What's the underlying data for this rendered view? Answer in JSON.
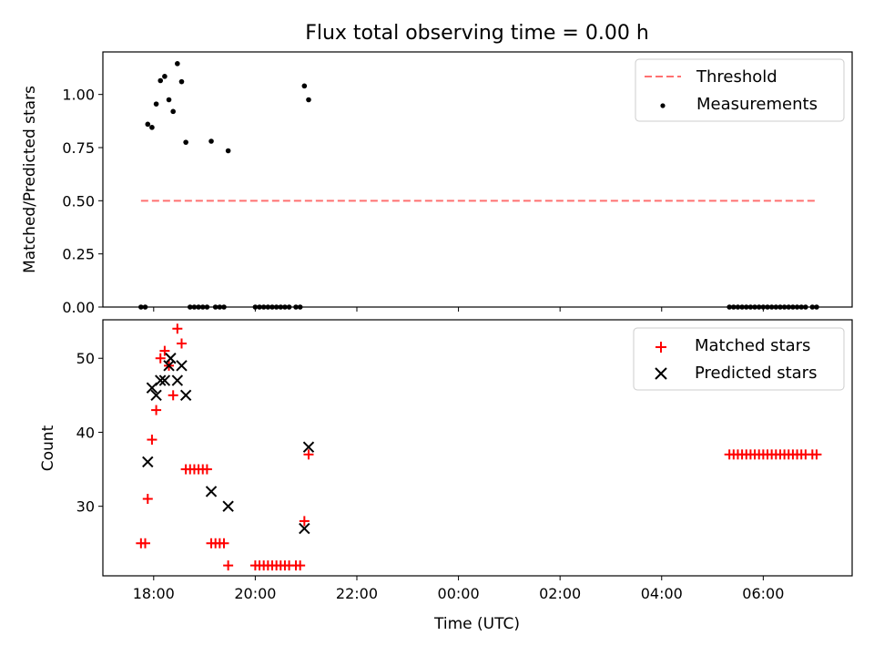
{
  "chart_data": [
    {
      "type": "scatter",
      "title": "Flux total observing time = 0.00 h",
      "xlabel": "",
      "ylabel": "Matched/Predicted stars",
      "xlim": [
        "17:00",
        "07:45"
      ],
      "ylim": [
        0,
        1.2
      ],
      "y_ticks": [
        "0.00",
        "0.25",
        "0.50",
        "0.75",
        "1.00"
      ],
      "x_tick_labels_shown": false,
      "legend_position": "upper right",
      "grid": false,
      "series": [
        {
          "name": "Threshold",
          "kind": "dashed-line",
          "color": "#ff7070",
          "points": [
            {
              "x": "17:45",
              "y": 0.5
            },
            {
              "x": "07:05",
              "y": 0.5
            }
          ]
        },
        {
          "name": "Measurements",
          "kind": "dot",
          "color": "#000000",
          "points": [
            {
              "x": "17:45",
              "y": 0
            },
            {
              "x": "17:50",
              "y": 0
            },
            {
              "x": "17:53",
              "y": 0.86
            },
            {
              "x": "17:58",
              "y": 0.845
            },
            {
              "x": "18:03",
              "y": 0.955
            },
            {
              "x": "18:08",
              "y": 1.065
            },
            {
              "x": "18:13",
              "y": 1.085
            },
            {
              "x": "18:18",
              "y": 0.975
            },
            {
              "x": "18:23",
              "y": 0.92
            },
            {
              "x": "18:28",
              "y": 1.145
            },
            {
              "x": "18:33",
              "y": 1.06
            },
            {
              "x": "18:38",
              "y": 0.775
            },
            {
              "x": "18:43",
              "y": 0
            },
            {
              "x": "18:48",
              "y": 0
            },
            {
              "x": "18:53",
              "y": 0
            },
            {
              "x": "18:58",
              "y": 0
            },
            {
              "x": "19:03",
              "y": 0
            },
            {
              "x": "19:08",
              "y": 0.78
            },
            {
              "x": "19:13",
              "y": 0
            },
            {
              "x": "19:18",
              "y": 0
            },
            {
              "x": "19:23",
              "y": 0
            },
            {
              "x": "19:28",
              "y": 0.735
            },
            {
              "x": "20:00",
              "y": 0
            },
            {
              "x": "20:05",
              "y": 0
            },
            {
              "x": "20:10",
              "y": 0
            },
            {
              "x": "20:15",
              "y": 0
            },
            {
              "x": "20:20",
              "y": 0
            },
            {
              "x": "20:25",
              "y": 0
            },
            {
              "x": "20:30",
              "y": 0
            },
            {
              "x": "20:35",
              "y": 0
            },
            {
              "x": "20:40",
              "y": 0
            },
            {
              "x": "20:48",
              "y": 0
            },
            {
              "x": "20:53",
              "y": 0
            },
            {
              "x": "20:58",
              "y": 1.04
            },
            {
              "x": "21:03",
              "y": 0.975
            },
            {
              "x": "05:20",
              "y": 0
            },
            {
              "x": "05:25",
              "y": 0
            },
            {
              "x": "05:30",
              "y": 0
            },
            {
              "x": "05:35",
              "y": 0
            },
            {
              "x": "05:40",
              "y": 0
            },
            {
              "x": "05:45",
              "y": 0
            },
            {
              "x": "05:50",
              "y": 0
            },
            {
              "x": "05:55",
              "y": 0
            },
            {
              "x": "06:00",
              "y": 0
            },
            {
              "x": "06:05",
              "y": 0
            },
            {
              "x": "06:10",
              "y": 0
            },
            {
              "x": "06:15",
              "y": 0
            },
            {
              "x": "06:20",
              "y": 0
            },
            {
              "x": "06:25",
              "y": 0
            },
            {
              "x": "06:30",
              "y": 0
            },
            {
              "x": "06:35",
              "y": 0
            },
            {
              "x": "06:40",
              "y": 0
            },
            {
              "x": "06:45",
              "y": 0
            },
            {
              "x": "06:50",
              "y": 0
            },
            {
              "x": "06:58",
              "y": 0
            },
            {
              "x": "07:03",
              "y": 0
            }
          ]
        }
      ]
    },
    {
      "type": "scatter",
      "title": "",
      "xlabel": "Time (UTC)",
      "ylabel": "Count",
      "xlim": [
        "17:00",
        "07:45"
      ],
      "ylim": [
        20.6,
        55.2
      ],
      "y_ticks": [
        "30",
        "40",
        "50"
      ],
      "x_ticks": [
        "18:00",
        "20:00",
        "22:00",
        "00:00",
        "02:00",
        "04:00",
        "06:00"
      ],
      "legend_position": "upper right",
      "grid": false,
      "series": [
        {
          "name": "Matched stars",
          "kind": "plus",
          "color": "#ff0000",
          "points": [
            {
              "x": "17:45",
              "y": 25
            },
            {
              "x": "17:50",
              "y": 25
            },
            {
              "x": "17:53",
              "y": 31
            },
            {
              "x": "17:58",
              "y": 39
            },
            {
              "x": "18:03",
              "y": 43
            },
            {
              "x": "18:08",
              "y": 50
            },
            {
              "x": "18:13",
              "y": 51
            },
            {
              "x": "18:18",
              "y": 49
            },
            {
              "x": "18:23",
              "y": 45
            },
            {
              "x": "18:28",
              "y": 54
            },
            {
              "x": "18:33",
              "y": 52
            },
            {
              "x": "18:38",
              "y": 35
            },
            {
              "x": "18:43",
              "y": 35
            },
            {
              "x": "18:48",
              "y": 35
            },
            {
              "x": "18:53",
              "y": 35
            },
            {
              "x": "18:58",
              "y": 35
            },
            {
              "x": "19:03",
              "y": 35
            },
            {
              "x": "19:08",
              "y": 25
            },
            {
              "x": "19:13",
              "y": 25
            },
            {
              "x": "19:18",
              "y": 25
            },
            {
              "x": "19:23",
              "y": 25
            },
            {
              "x": "19:28",
              "y": 22
            },
            {
              "x": "20:00",
              "y": 22
            },
            {
              "x": "20:05",
              "y": 22
            },
            {
              "x": "20:10",
              "y": 22
            },
            {
              "x": "20:15",
              "y": 22
            },
            {
              "x": "20:20",
              "y": 22
            },
            {
              "x": "20:25",
              "y": 22
            },
            {
              "x": "20:30",
              "y": 22
            },
            {
              "x": "20:35",
              "y": 22
            },
            {
              "x": "20:40",
              "y": 22
            },
            {
              "x": "20:48",
              "y": 22
            },
            {
              "x": "20:53",
              "y": 22
            },
            {
              "x": "20:58",
              "y": 28
            },
            {
              "x": "21:03",
              "y": 37
            },
            {
              "x": "05:20",
              "y": 37
            },
            {
              "x": "05:25",
              "y": 37
            },
            {
              "x": "05:30",
              "y": 37
            },
            {
              "x": "05:35",
              "y": 37
            },
            {
              "x": "05:40",
              "y": 37
            },
            {
              "x": "05:45",
              "y": 37
            },
            {
              "x": "05:50",
              "y": 37
            },
            {
              "x": "05:55",
              "y": 37
            },
            {
              "x": "06:00",
              "y": 37
            },
            {
              "x": "06:05",
              "y": 37
            },
            {
              "x": "06:10",
              "y": 37
            },
            {
              "x": "06:15",
              "y": 37
            },
            {
              "x": "06:20",
              "y": 37
            },
            {
              "x": "06:25",
              "y": 37
            },
            {
              "x": "06:30",
              "y": 37
            },
            {
              "x": "06:35",
              "y": 37
            },
            {
              "x": "06:40",
              "y": 37
            },
            {
              "x": "06:45",
              "y": 37
            },
            {
              "x": "06:50",
              "y": 37
            },
            {
              "x": "06:58",
              "y": 37
            },
            {
              "x": "07:03",
              "y": 37
            }
          ]
        },
        {
          "name": "Predicted stars",
          "kind": "cross",
          "color": "#000000",
          "points": [
            {
              "x": "17:53",
              "y": 36
            },
            {
              "x": "17:58",
              "y": 46
            },
            {
              "x": "18:03",
              "y": 45
            },
            {
              "x": "18:08",
              "y": 47
            },
            {
              "x": "18:13",
              "y": 47
            },
            {
              "x": "18:18",
              "y": 49
            },
            {
              "x": "18:20",
              "y": 50
            },
            {
              "x": "18:28",
              "y": 47
            },
            {
              "x": "18:33",
              "y": 49
            },
            {
              "x": "18:38",
              "y": 45
            },
            {
              "x": "19:08",
              "y": 32
            },
            {
              "x": "19:28",
              "y": 30
            },
            {
              "x": "20:58",
              "y": 27
            },
            {
              "x": "21:03",
              "y": 38
            }
          ]
        }
      ]
    }
  ]
}
